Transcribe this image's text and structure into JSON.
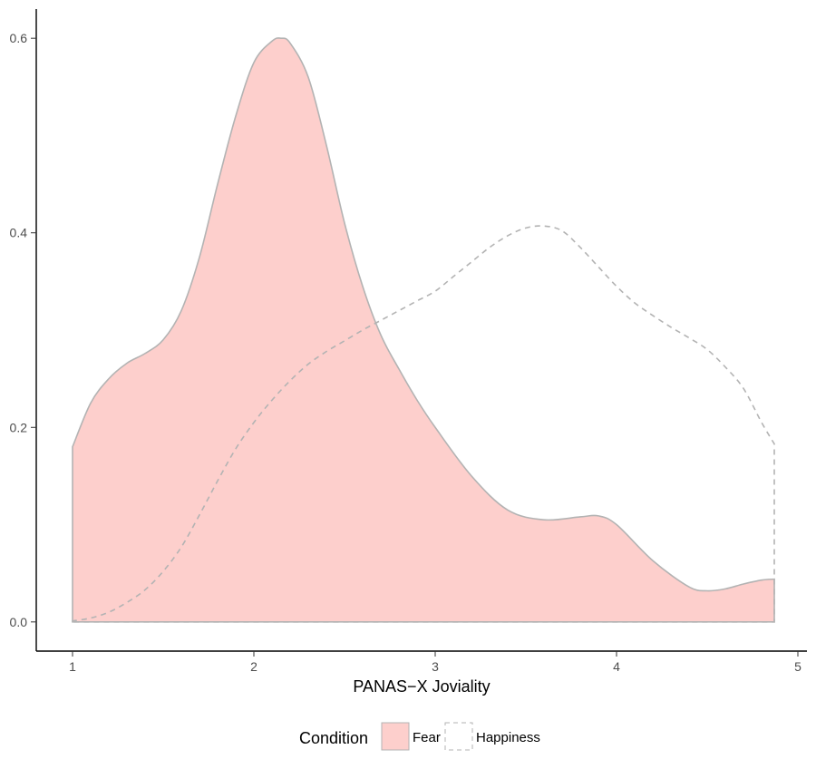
{
  "chart_data": {
    "type": "area",
    "xlabel": "PANAS−X Joviality",
    "ylabel": "",
    "xlim": [
      0.8,
      5.05
    ],
    "ylim": [
      -0.03,
      0.63
    ],
    "x_ticks": [
      1,
      2,
      3,
      4,
      5
    ],
    "x_tick_labels": [
      "1",
      "2",
      "3",
      "4",
      "5"
    ],
    "y_ticks": [
      0.0,
      0.2,
      0.4,
      0.6
    ],
    "y_tick_labels": [
      "0.0",
      "0.2",
      "0.4",
      "0.6"
    ],
    "grid": false,
    "legend": {
      "title": "Condition",
      "position": "bottom",
      "entries": [
        "Fear",
        "Happiness"
      ]
    },
    "series": [
      {
        "name": "Fear",
        "fill": "#f8766d",
        "fill_opacity": 0.35,
        "stroke": "#b3b3b3",
        "linetype": "solid",
        "x": [
          1.0,
          1.1,
          1.2,
          1.3,
          1.4,
          1.5,
          1.6,
          1.7,
          1.8,
          1.9,
          2.0,
          2.1,
          2.15,
          2.2,
          2.3,
          2.4,
          2.5,
          2.6,
          2.7,
          2.8,
          2.9,
          3.0,
          3.2,
          3.4,
          3.6,
          3.8,
          3.9,
          4.0,
          4.2,
          4.4,
          4.5,
          4.6,
          4.7,
          4.8,
          4.87
        ],
        "y": [
          0.18,
          0.225,
          0.25,
          0.266,
          0.276,
          0.29,
          0.32,
          0.375,
          0.45,
          0.52,
          0.575,
          0.597,
          0.6,
          0.595,
          0.56,
          0.49,
          0.41,
          0.345,
          0.295,
          0.26,
          0.228,
          0.2,
          0.15,
          0.115,
          0.105,
          0.108,
          0.109,
          0.1,
          0.063,
          0.036,
          0.032,
          0.034,
          0.039,
          0.043,
          0.044
        ]
      },
      {
        "name": "Happiness",
        "fill": "none",
        "stroke": "#b3b3b3",
        "linetype": "dashed",
        "x": [
          1.0,
          1.1,
          1.2,
          1.3,
          1.4,
          1.5,
          1.6,
          1.7,
          1.8,
          1.9,
          2.0,
          2.1,
          2.2,
          2.3,
          2.4,
          2.5,
          2.6,
          2.7,
          2.8,
          2.9,
          3.0,
          3.1,
          3.2,
          3.3,
          3.4,
          3.5,
          3.6,
          3.7,
          3.8,
          3.9,
          4.0,
          4.1,
          4.2,
          4.3,
          4.4,
          4.5,
          4.6,
          4.7,
          4.8,
          4.87
        ],
        "y": [
          0.001,
          0.004,
          0.01,
          0.02,
          0.033,
          0.052,
          0.077,
          0.11,
          0.145,
          0.178,
          0.205,
          0.228,
          0.248,
          0.265,
          0.278,
          0.289,
          0.3,
          0.31,
          0.32,
          0.33,
          0.34,
          0.355,
          0.37,
          0.385,
          0.397,
          0.405,
          0.407,
          0.402,
          0.385,
          0.365,
          0.345,
          0.328,
          0.315,
          0.303,
          0.292,
          0.28,
          0.262,
          0.24,
          0.205,
          0.183
        ]
      }
    ]
  }
}
